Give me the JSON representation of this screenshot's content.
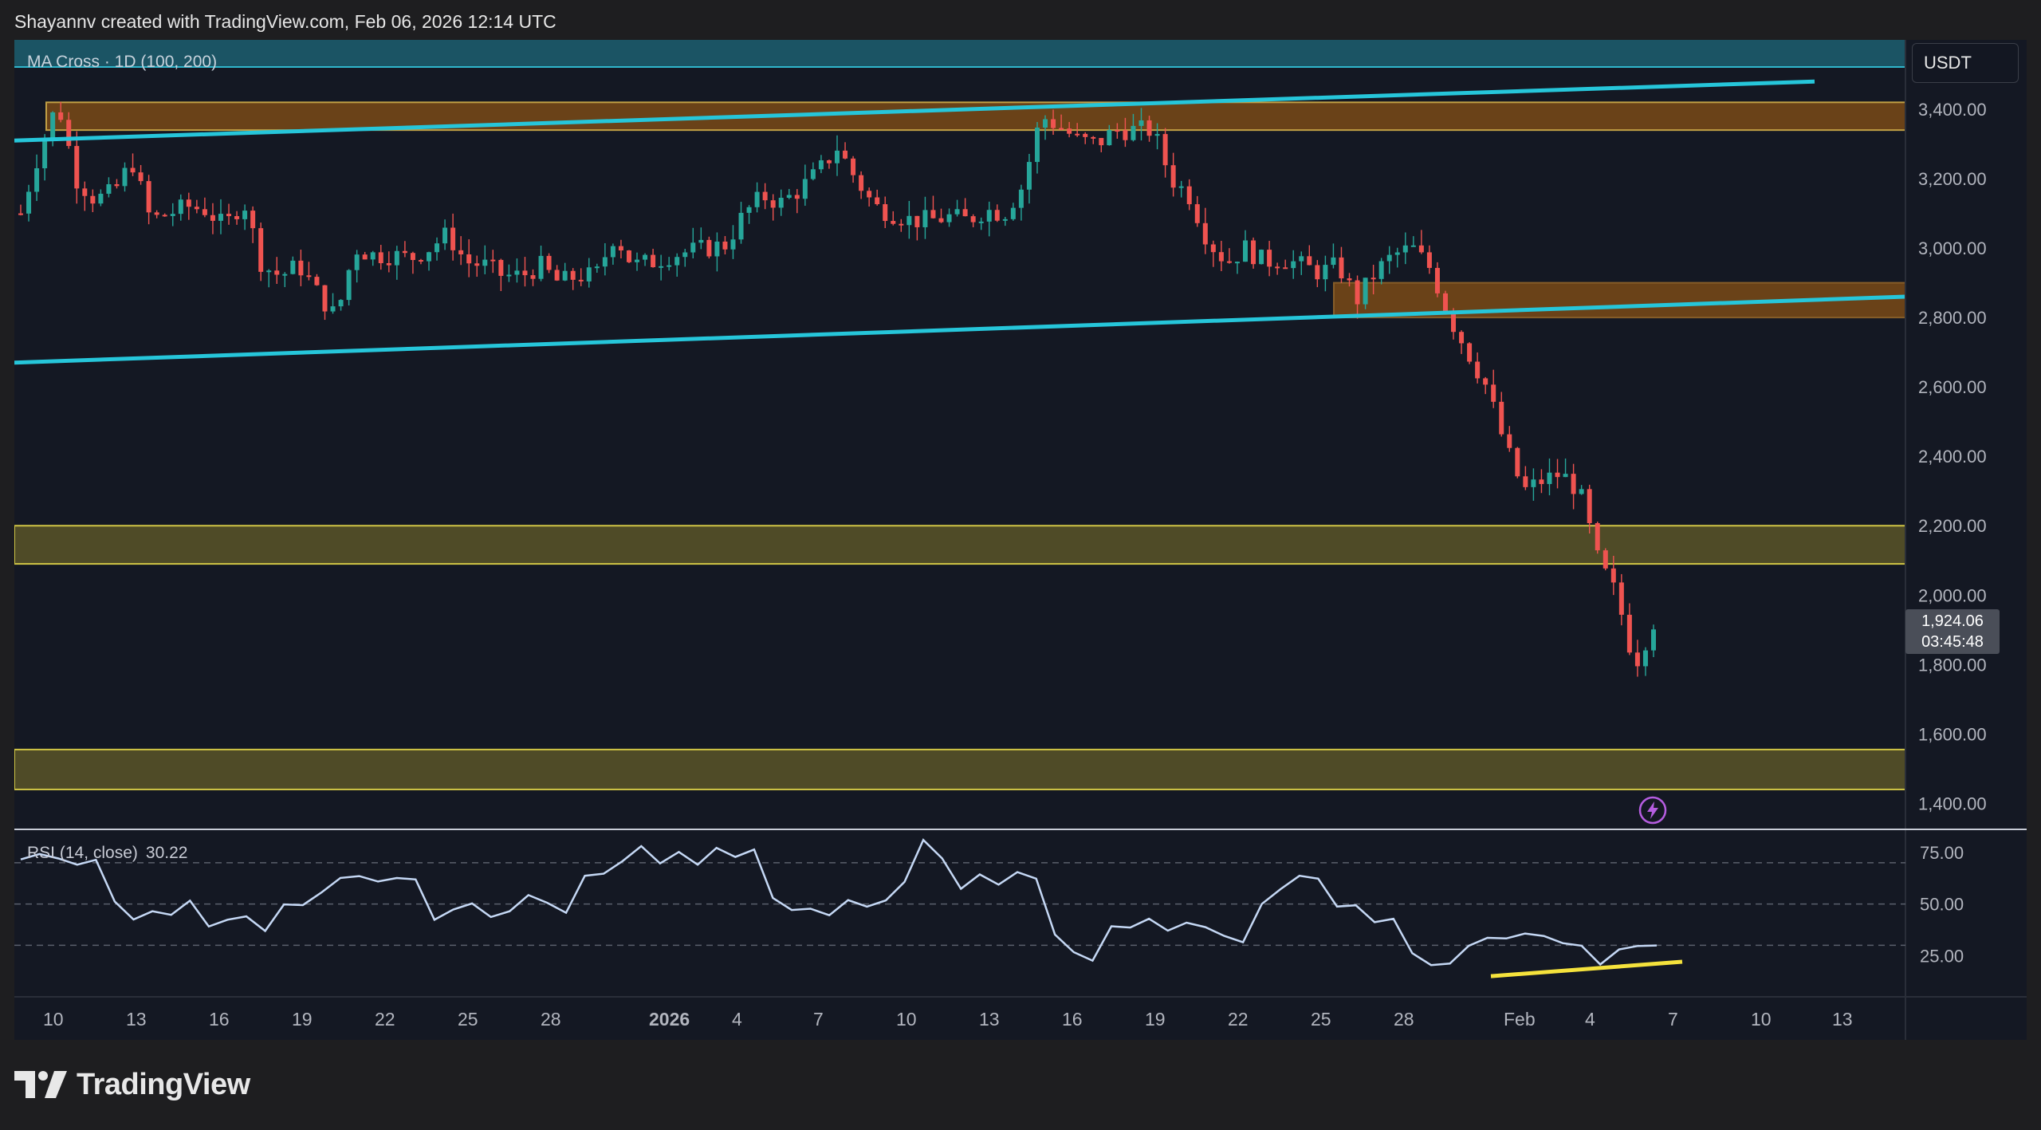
{
  "caption": "Shayannv created with TradingView.com, Feb 06, 2026 12:14 UTC",
  "currency": "USDT",
  "footer_logo_text": "TradingView",
  "colors": {
    "background": "#1e1e20",
    "chart_bg": "#141823",
    "up_candle": "#26a69a",
    "down_candle": "#ef5350",
    "ma_line": "#26c6da",
    "supply_zone": "#7a4a17",
    "demand_zone": "#5a5428",
    "rsi_line": "#c5d8f5",
    "divergence_line": "#f5e23c"
  },
  "indicator_legend": {
    "ma": "MA Cross · 1D (100, 200)",
    "rsi_label": "RSI (14, close)",
    "rsi_value": "30.22"
  },
  "last_price": {
    "price": "1,924.06",
    "countdown": "03:45:48"
  },
  "icons": [
    "flash-icon",
    "tradingview-logo-icon"
  ],
  "chart_data": [
    {
      "type": "candlestick",
      "title": "",
      "y_ticks": [
        "1,400.00",
        "1,600.00",
        "1,800.00",
        "2,000.00",
        "2,200.00",
        "2,400.00",
        "2,600.00",
        "2,800.00",
        "3,000.00",
        "3,200.00",
        "3,400.00"
      ],
      "ylim": [
        1325,
        3600
      ],
      "x_ticks": [
        "10",
        "13",
        "16",
        "19",
        "22",
        "25",
        "28",
        "2026",
        "4",
        "7",
        "10",
        "13",
        "16",
        "19",
        "22",
        "25",
        "28",
        "Feb",
        "4",
        "7",
        "10",
        "13"
      ],
      "series": [
        {
          "name": "price_path",
          "values": [
            3100,
            3280,
            3420,
            3200,
            3140,
            3160,
            3250,
            3080,
            3100,
            3120,
            3110,
            3060,
            3140,
            2950,
            2920,
            2950,
            2870,
            2800,
            3000,
            2980,
            2980,
            2970,
            3000,
            3040,
            2960,
            2950,
            2920,
            2920,
            2950,
            2900,
            2920,
            2920,
            3040,
            2950,
            2960,
            2980,
            2990,
            3000,
            3010,
            3100,
            3150,
            3130,
            3170,
            3220,
            3290,
            3200,
            3120,
            3100,
            3080,
            3080,
            3090,
            3080,
            3110,
            3100,
            3180,
            3380,
            3350,
            3310,
            3300,
            3340,
            3340,
            3340,
            3200,
            3150,
            3020,
            2960,
            3000,
            2960,
            2970,
            2950,
            2930,
            2950,
            2850,
            2930,
            2980,
            3000,
            2940,
            2800,
            2700,
            2600,
            2430,
            2300,
            2330,
            2350,
            2300,
            2100,
            2000,
            1800,
            1924
          ]
        }
      ],
      "levels": {
        "supply_zone_upper": [
          3340,
          3420
        ],
        "supply_zone_mid": [
          2800,
          2900
        ],
        "demand_zone_upper": [
          2090,
          2200
        ],
        "demand_zone_lower": [
          1440,
          1555
        ]
      },
      "ma_lines": [
        {
          "name": "MA 100",
          "from": 3310,
          "to": 3480
        },
        {
          "name": "MA 200",
          "from": 2670,
          "to": 2860
        }
      ]
    },
    {
      "type": "line",
      "title": "",
      "y_ticks": [
        "25.00",
        "50.00",
        "75.00"
      ],
      "ylim": [
        5,
        85
      ],
      "series": [
        {
          "name": "RSI (14, close)",
          "values": [
            70,
            74,
            72,
            68,
            72,
            52,
            44,
            48,
            46,
            52,
            40,
            42,
            46,
            38,
            48,
            50,
            56,
            62,
            62,
            62,
            64,
            60,
            44,
            46,
            52,
            44,
            48,
            54,
            50,
            46,
            62,
            66,
            72,
            78,
            70,
            74,
            68,
            76,
            72,
            78,
            52,
            48,
            46,
            44,
            50,
            48,
            50,
            62,
            80,
            74,
            58,
            64,
            60,
            64,
            62,
            36,
            28,
            24,
            40,
            38,
            42,
            36,
            40,
            38,
            36,
            30,
            50,
            56,
            64,
            62,
            50,
            48,
            42,
            42,
            26,
            22,
            20,
            28,
            34,
            32,
            36,
            34,
            32,
            30,
            22,
            28,
            30,
            30
          ]
        }
      ],
      "divergence": {
        "from": 15,
        "to": 22
      }
    }
  ]
}
